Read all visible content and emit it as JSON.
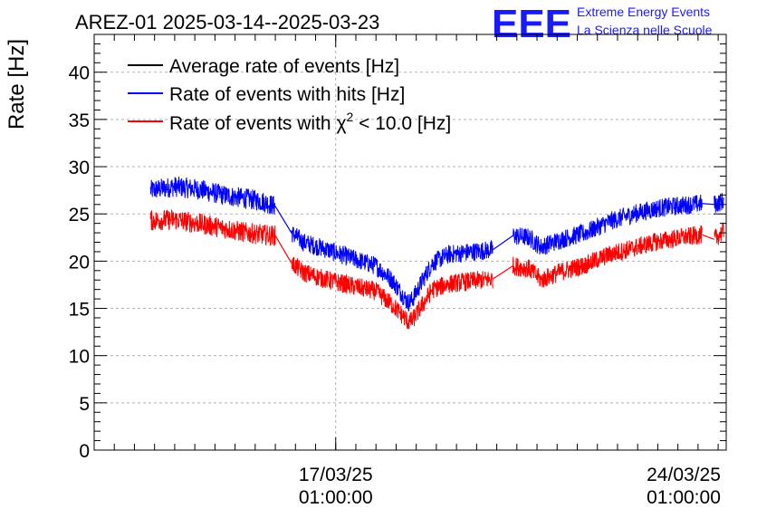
{
  "header": {
    "title": "AREZ-01 2025-03-14--2025-03-23",
    "logo_mark": "EEE",
    "logo_line1": "Extreme Energy Events",
    "logo_line2": "La Scienza nelle Scuole"
  },
  "colors": {
    "average": "#000000",
    "hits": "#0000ff",
    "chi2": "#ff0000",
    "grid": "#b0b0b0",
    "logo": "#1a1aff"
  },
  "chart_data": {
    "type": "line",
    "title": "AREZ-01 2025-03-14--2025-03-23",
    "ylabel": "Rate [Hz]",
    "xlabel": "",
    "ylim": [
      0,
      44
    ],
    "xlim": [
      2.0,
      9.85
    ],
    "y_ticks": [
      0,
      5,
      10,
      15,
      20,
      25,
      30,
      35,
      40
    ],
    "x_ticks": [
      {
        "x": 5.0,
        "date": "17/03/25",
        "time": "01:00:00"
      },
      {
        "x": 10.0,
        "date": "24/03/25",
        "time": "01:00:00"
      }
    ],
    "x_unit": "days since 2025-03-14 00:00",
    "grid": true,
    "legend_position": "top-left",
    "legend": [
      {
        "label": "Average rate of events [Hz]",
        "color": "#000000",
        "key": "average"
      },
      {
        "label": "Rate of events with hits [Hz]",
        "color": "#0000ff",
        "key": "hits"
      },
      {
        "label_prefix": "Rate of events with ",
        "label_symbol": "χ",
        "label_sup": "2",
        "label_suffix": " < 10.0 [Hz]",
        "color": "#ff0000",
        "key": "chi2"
      }
    ],
    "series": [
      {
        "name": "Rate of events with hits [Hz]",
        "key": "hits",
        "segments": [
          {
            "x": [
              2.7,
              3.0,
              3.3,
              3.6,
              3.9,
              4.1,
              4.25
            ],
            "y": [
              27.5,
              27.9,
              27.6,
              27.0,
              26.6,
              26.3,
              25.8
            ],
            "noise": 1.1
          },
          {
            "x": [
              4.45,
              4.6,
              4.9,
              5.2,
              5.5,
              5.7,
              5.9,
              5.95,
              6.05,
              6.2,
              6.4,
              6.7,
              6.95
            ],
            "y": [
              23.0,
              22.0,
              21.2,
              20.3,
              19.5,
              18.0,
              15.6,
              15.9,
              17.5,
              19.8,
              20.7,
              21.0,
              21.2
            ],
            "noise": 1.0
          },
          {
            "x": [
              7.2,
              7.4,
              7.55,
              7.8,
              8.1,
              8.4,
              8.7,
              9.0,
              9.3,
              9.55
            ],
            "y": [
              22.7,
              22.5,
              21.5,
              22.3,
              23.0,
              24.2,
              25.0,
              25.6,
              25.9,
              26.1
            ],
            "noise": 1.0
          },
          {
            "x": [
              9.7,
              9.82
            ],
            "y": [
              26.0,
              26.4
            ],
            "noise": 1.0
          }
        ]
      },
      {
        "name": "Rate of events with χ2 < 10.0 [Hz]",
        "key": "chi2",
        "segments": [
          {
            "x": [
              2.7,
              3.0,
              3.3,
              3.6,
              3.9,
              4.1,
              4.25
            ],
            "y": [
              24.3,
              24.4,
              24.0,
              23.5,
              23.0,
              22.8,
              22.7
            ],
            "noise": 1.1
          },
          {
            "x": [
              4.45,
              4.6,
              4.9,
              5.2,
              5.5,
              5.7,
              5.9,
              5.95,
              6.05,
              6.2,
              6.4,
              6.7,
              6.95
            ],
            "y": [
              19.8,
              18.8,
              18.0,
              17.4,
              16.8,
              15.4,
              13.6,
              13.7,
              15.0,
              17.0,
              17.6,
              17.9,
              18.1
            ],
            "noise": 1.0
          },
          {
            "x": [
              7.2,
              7.4,
              7.55,
              7.8,
              8.1,
              8.4,
              8.7,
              9.0,
              9.3,
              9.55
            ],
            "y": [
              19.5,
              19.2,
              18.0,
              18.9,
              19.6,
              20.7,
              21.4,
              22.1,
              22.5,
              22.8
            ],
            "noise": 1.0
          },
          {
            "x": [
              9.7,
              9.82
            ],
            "y": [
              22.3,
              23.2
            ],
            "noise": 1.0
          }
        ]
      }
    ]
  }
}
